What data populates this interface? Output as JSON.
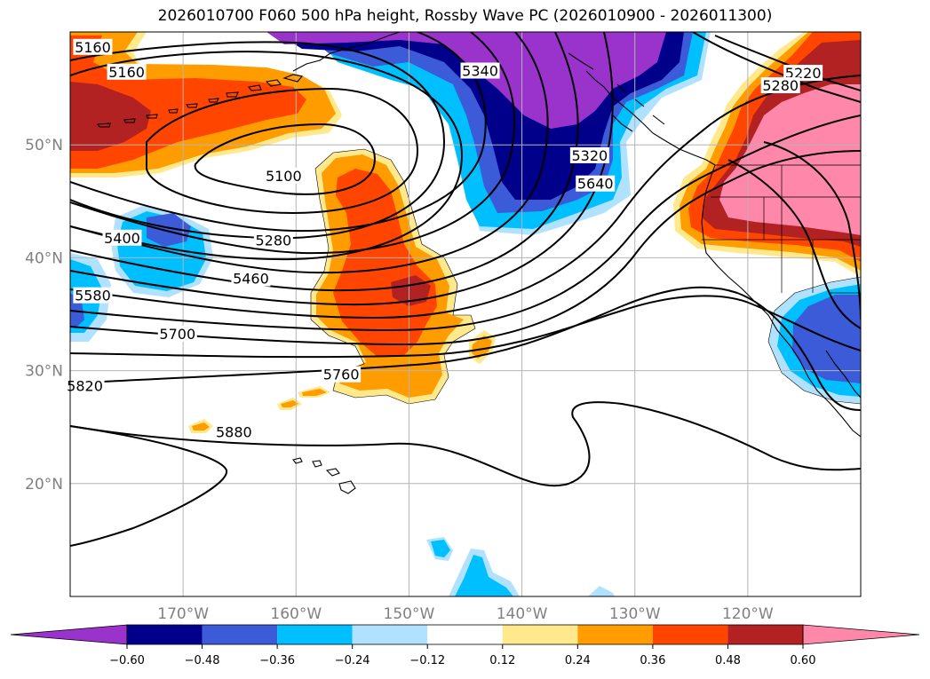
{
  "title": "2026010700 F060 500 hPa height, Rossby Wave PC (2026010900 - 2026011300)",
  "map": {
    "lon_range": [
      -180,
      -110
    ],
    "lat_range": [
      10,
      60
    ],
    "lat_labels": [
      "50°N",
      "40°N",
      "30°N",
      "20°N"
    ],
    "lon_labels": [
      "170°W",
      "160°W",
      "150°W",
      "140°W",
      "130°W",
      "120°W"
    ],
    "gridlines": true,
    "contour_labels": [
      {
        "text": "5160",
        "lon": -178.0,
        "lat": 58.6
      },
      {
        "text": "5160",
        "lon": -175.0,
        "lat": 56.4
      },
      {
        "text": "5340",
        "lon": -143.7,
        "lat": 56.5
      },
      {
        "text": "5220",
        "lon": -115.1,
        "lat": 56.3
      },
      {
        "text": "5280",
        "lon": -117.1,
        "lat": 55.2
      },
      {
        "text": "5320",
        "lon": -134.0,
        "lat": 49.0
      },
      {
        "text": "5100",
        "lon": -161.1,
        "lat": 47.2
      },
      {
        "text": "5640",
        "lon": -133.5,
        "lat": 46.5
      },
      {
        "text": "5400",
        "lon": -175.4,
        "lat": 41.7
      },
      {
        "text": "5280",
        "lon": -162.0,
        "lat": 41.5
      },
      {
        "text": "5460",
        "lon": -164.0,
        "lat": 38.1
      },
      {
        "text": "5580",
        "lon": -178.0,
        "lat": 36.6
      },
      {
        "text": "5700",
        "lon": -170.5,
        "lat": 33.2
      },
      {
        "text": "5760",
        "lon": -156.0,
        "lat": 29.6
      },
      {
        "text": "5820",
        "lon": -178.7,
        "lat": 28.6
      },
      {
        "text": "5880",
        "lon": -165.5,
        "lat": 24.5
      }
    ],
    "shading_legend_colors": [
      "#9933cc",
      "#00008b",
      "#3b5bd8",
      "#00bfff",
      "#b0e2ff",
      "#ffffff",
      "#ffe98c",
      "#ff9d00",
      "#ff4500",
      "#b22222",
      "#ff88aa"
    ]
  },
  "colorbar": {
    "ticks": [
      "−0.60",
      "−0.48",
      "−0.36",
      "−0.24",
      "−0.12",
      "0.12",
      "0.24",
      "0.36",
      "0.48",
      "0.60"
    ],
    "colors": [
      "#9933cc",
      "#00008b",
      "#3b5bd8",
      "#00bfff",
      "#b0e2ff",
      "#ffffff",
      "#ffe98c",
      "#ff9d00",
      "#ff4500",
      "#b22222",
      "#ff88aa"
    ]
  }
}
